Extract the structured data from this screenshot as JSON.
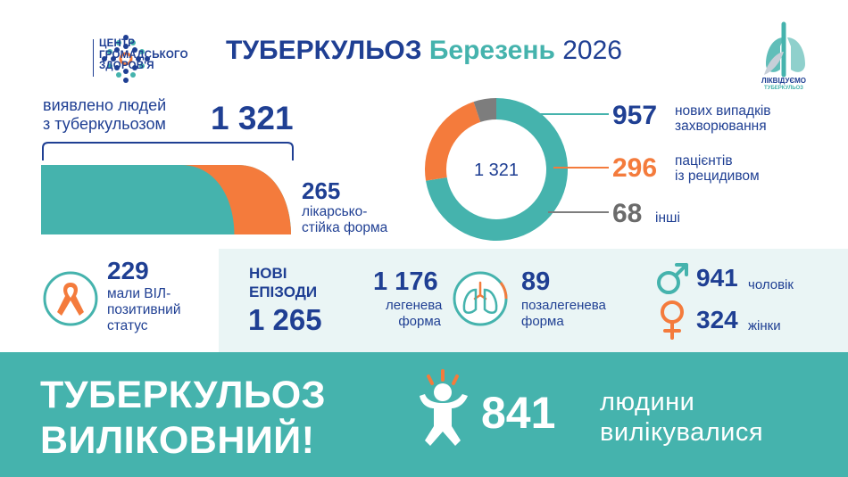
{
  "header": {
    "org_name_lines": [
      "ЦЕНТР",
      "ГРОМАДСЬКОГО",
      "ЗДОРОВ'Я"
    ],
    "title_main": "ТУБЕРКУЛЬОЗ",
    "title_month": "Березень",
    "title_year": "2026",
    "right_logo_line1": "ЛІКВІДУЄМО",
    "right_logo_line2": "ТУБЕРКУЛЬОЗ"
  },
  "detected": {
    "label_line1": "виявлено людей",
    "label_line2": "з туберкульозом",
    "value": "1 321",
    "drug_resistant_value": "265",
    "drug_resistant_label_line1": "лікарсько-",
    "drug_resistant_label_line2": "стійка форма"
  },
  "donut": {
    "center_label": "1 321",
    "legend": [
      {
        "value": "957",
        "label_line1": "нових випадків",
        "label_line2": "захворювання"
      },
      {
        "value": "296",
        "label_line1": "пацієнтів",
        "label_line2": "із рецидивом"
      },
      {
        "value": "68",
        "label_line1": "інші",
        "label_line2": ""
      }
    ]
  },
  "hiv": {
    "value": "229",
    "label_line1": "мали ВІЛ-",
    "label_line2": "позитивний",
    "label_line3": "статус"
  },
  "new_episodes": {
    "title_line1": "НОВІ",
    "title_line2": "ЕПІЗОДИ",
    "value": "1 265",
    "pulmonary_value": "1 176",
    "pulmonary_label_line1": "легенева",
    "pulmonary_label_line2": "форма",
    "extrapulmonary_value": "89",
    "extrapulmonary_label_line1": "позалегенева",
    "extrapulmonary_label_line2": "форма"
  },
  "gender": {
    "male_value": "941",
    "male_label": "чоловік",
    "female_value": "324",
    "female_label": "жінки"
  },
  "cured": {
    "title_line1": "ТУБЕРКУЛЬОЗ",
    "title_line2": "ВИЛІКОВНИЙ!",
    "value": "841",
    "label_line1": "людини",
    "label_line2": "вилікувалися"
  },
  "icons": {
    "org_logo": "org-dots-logo-icon",
    "campaign_logo": "lungs-plant-logo-icon",
    "ribbon": "awareness-ribbon-icon",
    "lungs": "lungs-icon",
    "male": "male-symbol-icon",
    "female": "female-symbol-icon",
    "child": "jumping-child-icon"
  },
  "colors": {
    "navy": "#1f3f93",
    "teal": "#45b3ad",
    "orange": "#f47b3c",
    "gray": "#7d7d7d",
    "band": "#eaf5f5"
  },
  "chart_data": [
    {
      "type": "pie",
      "categories": [
        "нових випадків захворювання",
        "пацієнтів із рецидивом",
        "інші"
      ],
      "values": [
        957,
        296,
        68
      ],
      "total": 1321,
      "colors": [
        "#45b3ad",
        "#f47b3c",
        "#7d7d7d"
      ]
    },
    {
      "type": "area",
      "categories": [
        "виявлено людей з туберкульозом",
        "лікарсько-стійка форма"
      ],
      "values": [
        1321,
        265
      ],
      "colors": [
        "#45b3ad",
        "#f47b3c"
      ]
    }
  ]
}
